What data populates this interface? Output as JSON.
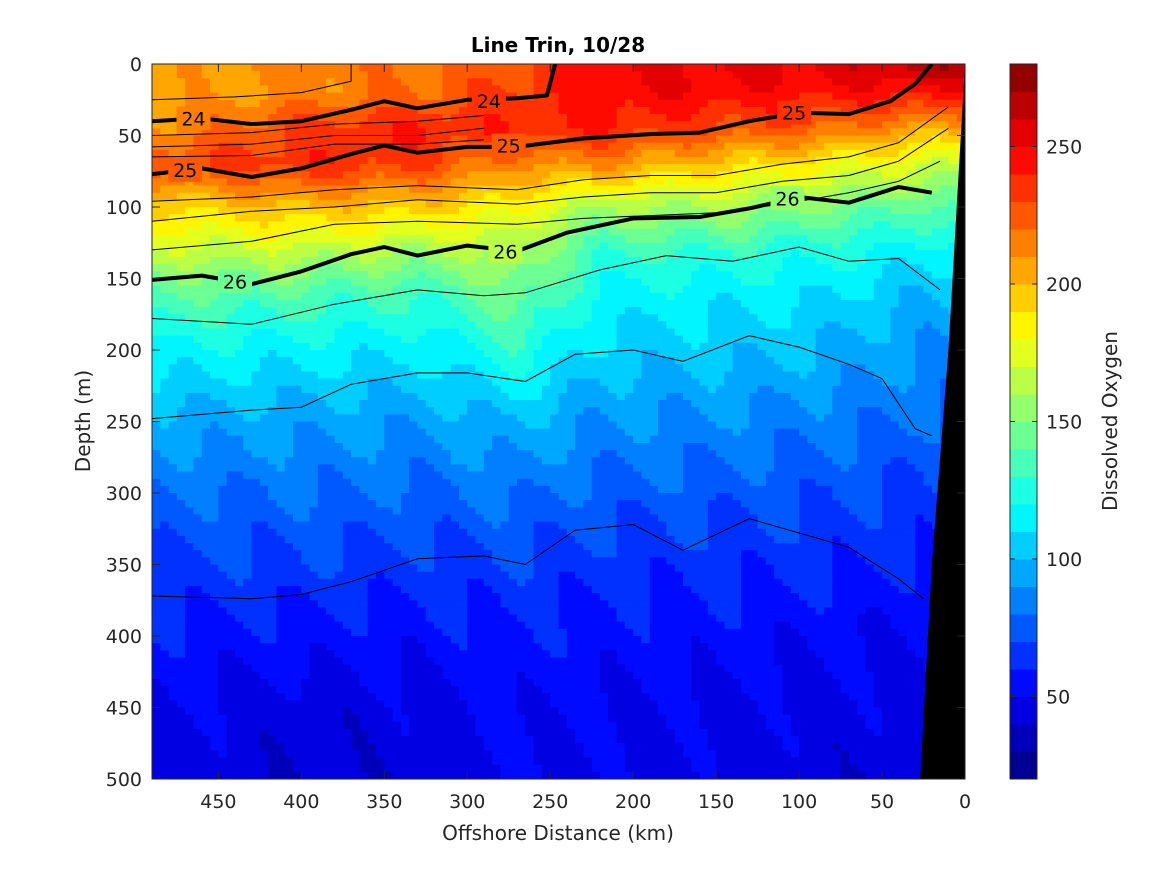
{
  "chart_data": {
    "type": "heatmap",
    "title": "Line Trin, 10/28",
    "xlabel": "Offshore Distance (km)",
    "ylabel": "Depth (m)",
    "colorbar_label": "Dissolved Oxygen",
    "xlim": [
      490,
      0
    ],
    "ylim": [
      0,
      500
    ],
    "x_reversed": true,
    "y_reversed": true,
    "x_ticks": [
      450,
      400,
      350,
      300,
      250,
      200,
      150,
      100,
      50,
      0
    ],
    "y_ticks": [
      0,
      50,
      100,
      150,
      200,
      250,
      300,
      350,
      400,
      450,
      500
    ],
    "colorbar_ticks": [
      50,
      100,
      150,
      200,
      250
    ],
    "clim": [
      20,
      280
    ],
    "colormap": "jet",
    "levels": 26,
    "oxygen_profiles": [
      {
        "x": 480,
        "depths": [
          0,
          20,
          45,
          70,
          100,
          130,
          160,
          200,
          250,
          300,
          350,
          400,
          450,
          500
        ],
        "values": [
          205,
          205,
          212,
          228,
          192,
          168,
          140,
          118,
          96,
          80,
          68,
          58,
          50,
          46
        ]
      },
      {
        "x": 400,
        "depths": [
          0,
          20,
          45,
          70,
          100,
          130,
          160,
          200,
          250,
          300,
          350,
          400,
          450,
          500
        ],
        "values": [
          215,
          212,
          232,
          238,
          200,
          168,
          138,
          115,
          94,
          80,
          68,
          56,
          44,
          42
        ]
      },
      {
        "x": 330,
        "depths": [
          0,
          20,
          45,
          70,
          100,
          130,
          160,
          200,
          250,
          300,
          350,
          400,
          450,
          500
        ],
        "values": [
          218,
          220,
          240,
          232,
          195,
          160,
          132,
          112,
          92,
          78,
          66,
          55,
          46,
          44
        ]
      },
      {
        "x": 270,
        "depths": [
          0,
          20,
          45,
          70,
          100,
          130,
          160,
          200,
          250,
          300,
          350,
          400,
          450,
          500
        ],
        "values": [
          228,
          232,
          238,
          212,
          182,
          162,
          148,
          128,
          100,
          82,
          68,
          58,
          52,
          50
        ]
      },
      {
        "x": 220,
        "depths": [
          0,
          20,
          45,
          70,
          100,
          130,
          160,
          200,
          250,
          300,
          350,
          400,
          450,
          500
        ],
        "values": [
          250,
          248,
          240,
          212,
          160,
          132,
          118,
          106,
          90,
          76,
          64,
          56,
          50,
          48
        ]
      },
      {
        "x": 150,
        "depths": [
          0,
          20,
          45,
          70,
          100,
          130,
          160,
          200,
          250,
          300,
          350,
          400,
          450,
          500
        ],
        "values": [
          252,
          248,
          230,
          195,
          160,
          130,
          115,
          104,
          88,
          75,
          63,
          55,
          48,
          46
        ]
      },
      {
        "x": 90,
        "depths": [
          0,
          20,
          45,
          70,
          100,
          130,
          160,
          200,
          250,
          300,
          350,
          400,
          450,
          500
        ],
        "values": [
          252,
          245,
          222,
          185,
          150,
          125,
          112,
          100,
          85,
          72,
          62,
          52,
          46,
          44
        ]
      },
      {
        "x": 20,
        "depths": [
          0,
          20,
          45,
          70,
          100,
          130,
          160,
          200,
          250,
          300,
          350,
          400,
          450,
          500
        ],
        "values": [
          268,
          245,
          205,
          170,
          140,
          115,
          100,
          90,
          78,
          68,
          58,
          50,
          46,
          44
        ]
      }
    ],
    "density_contours": [
      {
        "label": "24",
        "bold": true,
        "points": [
          [
            490,
            40
          ],
          [
            460,
            38
          ],
          [
            430,
            42
          ],
          [
            400,
            40
          ],
          [
            370,
            32
          ],
          [
            350,
            26
          ],
          [
            330,
            31
          ],
          [
            300,
            25
          ],
          [
            270,
            24
          ],
          [
            252,
            22
          ],
          [
            247,
            0
          ]
        ]
      },
      {
        "label": "25",
        "bold": true,
        "points": [
          [
            490,
            77
          ],
          [
            460,
            73
          ],
          [
            430,
            79
          ],
          [
            400,
            73
          ],
          [
            370,
            63
          ],
          [
            350,
            57
          ],
          [
            330,
            62
          ],
          [
            300,
            58
          ],
          [
            270,
            58
          ],
          [
            230,
            52
          ],
          [
            190,
            49
          ],
          [
            160,
            48
          ],
          [
            130,
            40
          ],
          [
            100,
            34
          ],
          [
            70,
            35
          ],
          [
            45,
            26
          ],
          [
            30,
            14
          ],
          [
            20,
            0
          ]
        ]
      },
      {
        "label": "26",
        "bold": true,
        "points": [
          [
            490,
            151
          ],
          [
            460,
            148
          ],
          [
            430,
            154
          ],
          [
            400,
            145
          ],
          [
            370,
            133
          ],
          [
            350,
            128
          ],
          [
            330,
            134
          ],
          [
            300,
            127
          ],
          [
            270,
            131
          ],
          [
            240,
            118
          ],
          [
            200,
            108
          ],
          [
            160,
            107
          ],
          [
            130,
            101
          ],
          [
            100,
            93
          ],
          [
            70,
            97
          ],
          [
            40,
            86
          ],
          [
            20,
            90
          ]
        ]
      }
    ],
    "thin_contours": [
      [
        [
          490,
          25
        ],
        [
          440,
          23
        ],
        [
          400,
          20
        ],
        [
          370,
          12
        ],
        [
          370,
          0
        ]
      ],
      [
        [
          490,
          50
        ],
        [
          430,
          48
        ],
        [
          380,
          42
        ],
        [
          330,
          40
        ],
        [
          290,
          36
        ]
      ],
      [
        [
          490,
          58
        ],
        [
          430,
          56
        ],
        [
          380,
          50
        ],
        [
          330,
          50
        ],
        [
          290,
          45
        ]
      ],
      [
        [
          490,
          65
        ],
        [
          430,
          64
        ],
        [
          380,
          56
        ],
        [
          330,
          56
        ],
        [
          290,
          53
        ]
      ],
      [
        [
          490,
          96
        ],
        [
          430,
          93
        ],
        [
          380,
          88
        ],
        [
          330,
          85
        ],
        [
          270,
          88
        ],
        [
          230,
          81
        ],
        [
          190,
          78
        ],
        [
          150,
          78
        ],
        [
          110,
          70
        ],
        [
          70,
          65
        ],
        [
          40,
          55
        ],
        [
          10,
          30
        ]
      ],
      [
        [
          490,
          110
        ],
        [
          430,
          103
        ],
        [
          380,
          100
        ],
        [
          330,
          95
        ],
        [
          270,
          98
        ],
        [
          230,
          93
        ],
        [
          190,
          90
        ],
        [
          150,
          90
        ],
        [
          110,
          82
        ],
        [
          70,
          78
        ],
        [
          40,
          68
        ],
        [
          10,
          45
        ]
      ],
      [
        [
          490,
          130
        ],
        [
          430,
          124
        ],
        [
          380,
          112
        ],
        [
          330,
          110
        ],
        [
          270,
          112
        ],
        [
          230,
          108
        ],
        [
          190,
          106
        ],
        [
          150,
          104
        ],
        [
          110,
          98
        ],
        [
          70,
          90
        ],
        [
          40,
          82
        ],
        [
          15,
          68
        ]
      ],
      [
        [
          490,
          178
        ],
        [
          430,
          182
        ],
        [
          380,
          168
        ],
        [
          330,
          158
        ],
        [
          290,
          162
        ],
        [
          265,
          160
        ],
        [
          220,
          144
        ],
        [
          180,
          134
        ],
        [
          140,
          138
        ],
        [
          100,
          128
        ],
        [
          70,
          138
        ],
        [
          40,
          136
        ],
        [
          15,
          158
        ]
      ],
      [
        [
          490,
          248
        ],
        [
          430,
          242
        ],
        [
          400,
          240
        ],
        [
          370,
          224
        ],
        [
          330,
          216
        ],
        [
          300,
          216
        ],
        [
          265,
          222
        ],
        [
          235,
          203
        ],
        [
          200,
          200
        ],
        [
          170,
          208
        ],
        [
          130,
          190
        ],
        [
          100,
          198
        ],
        [
          70,
          210
        ],
        [
          50,
          220
        ],
        [
          30,
          255
        ],
        [
          20,
          260
        ]
      ],
      [
        [
          490,
          372
        ],
        [
          430,
          374
        ],
        [
          400,
          371
        ],
        [
          370,
          362
        ],
        [
          330,
          346
        ],
        [
          290,
          344
        ],
        [
          265,
          350
        ],
        [
          235,
          326
        ],
        [
          200,
          322
        ],
        [
          170,
          340
        ],
        [
          130,
          318
        ],
        [
          100,
          328
        ],
        [
          70,
          338
        ],
        [
          40,
          360
        ],
        [
          25,
          374
        ]
      ]
    ],
    "bathymetry": {
      "color": "#000000",
      "points": [
        [
          27,
          500
        ],
        [
          20,
          350
        ],
        [
          10,
          200
        ],
        [
          5,
          100
        ],
        [
          0,
          0
        ]
      ]
    },
    "contour_label_positions": [
      {
        "label": "24",
        "x": 465,
        "y": 38
      },
      {
        "label": "24",
        "x": 287,
        "y": 26
      },
      {
        "label": "25",
        "x": 470,
        "y": 74
      },
      {
        "label": "25",
        "x": 275,
        "y": 57
      },
      {
        "label": "25",
        "x": 103,
        "y": 34
      },
      {
        "label": "26",
        "x": 440,
        "y": 152
      },
      {
        "label": "26",
        "x": 277,
        "y": 131
      },
      {
        "label": "26",
        "x": 107,
        "y": 94
      }
    ]
  }
}
